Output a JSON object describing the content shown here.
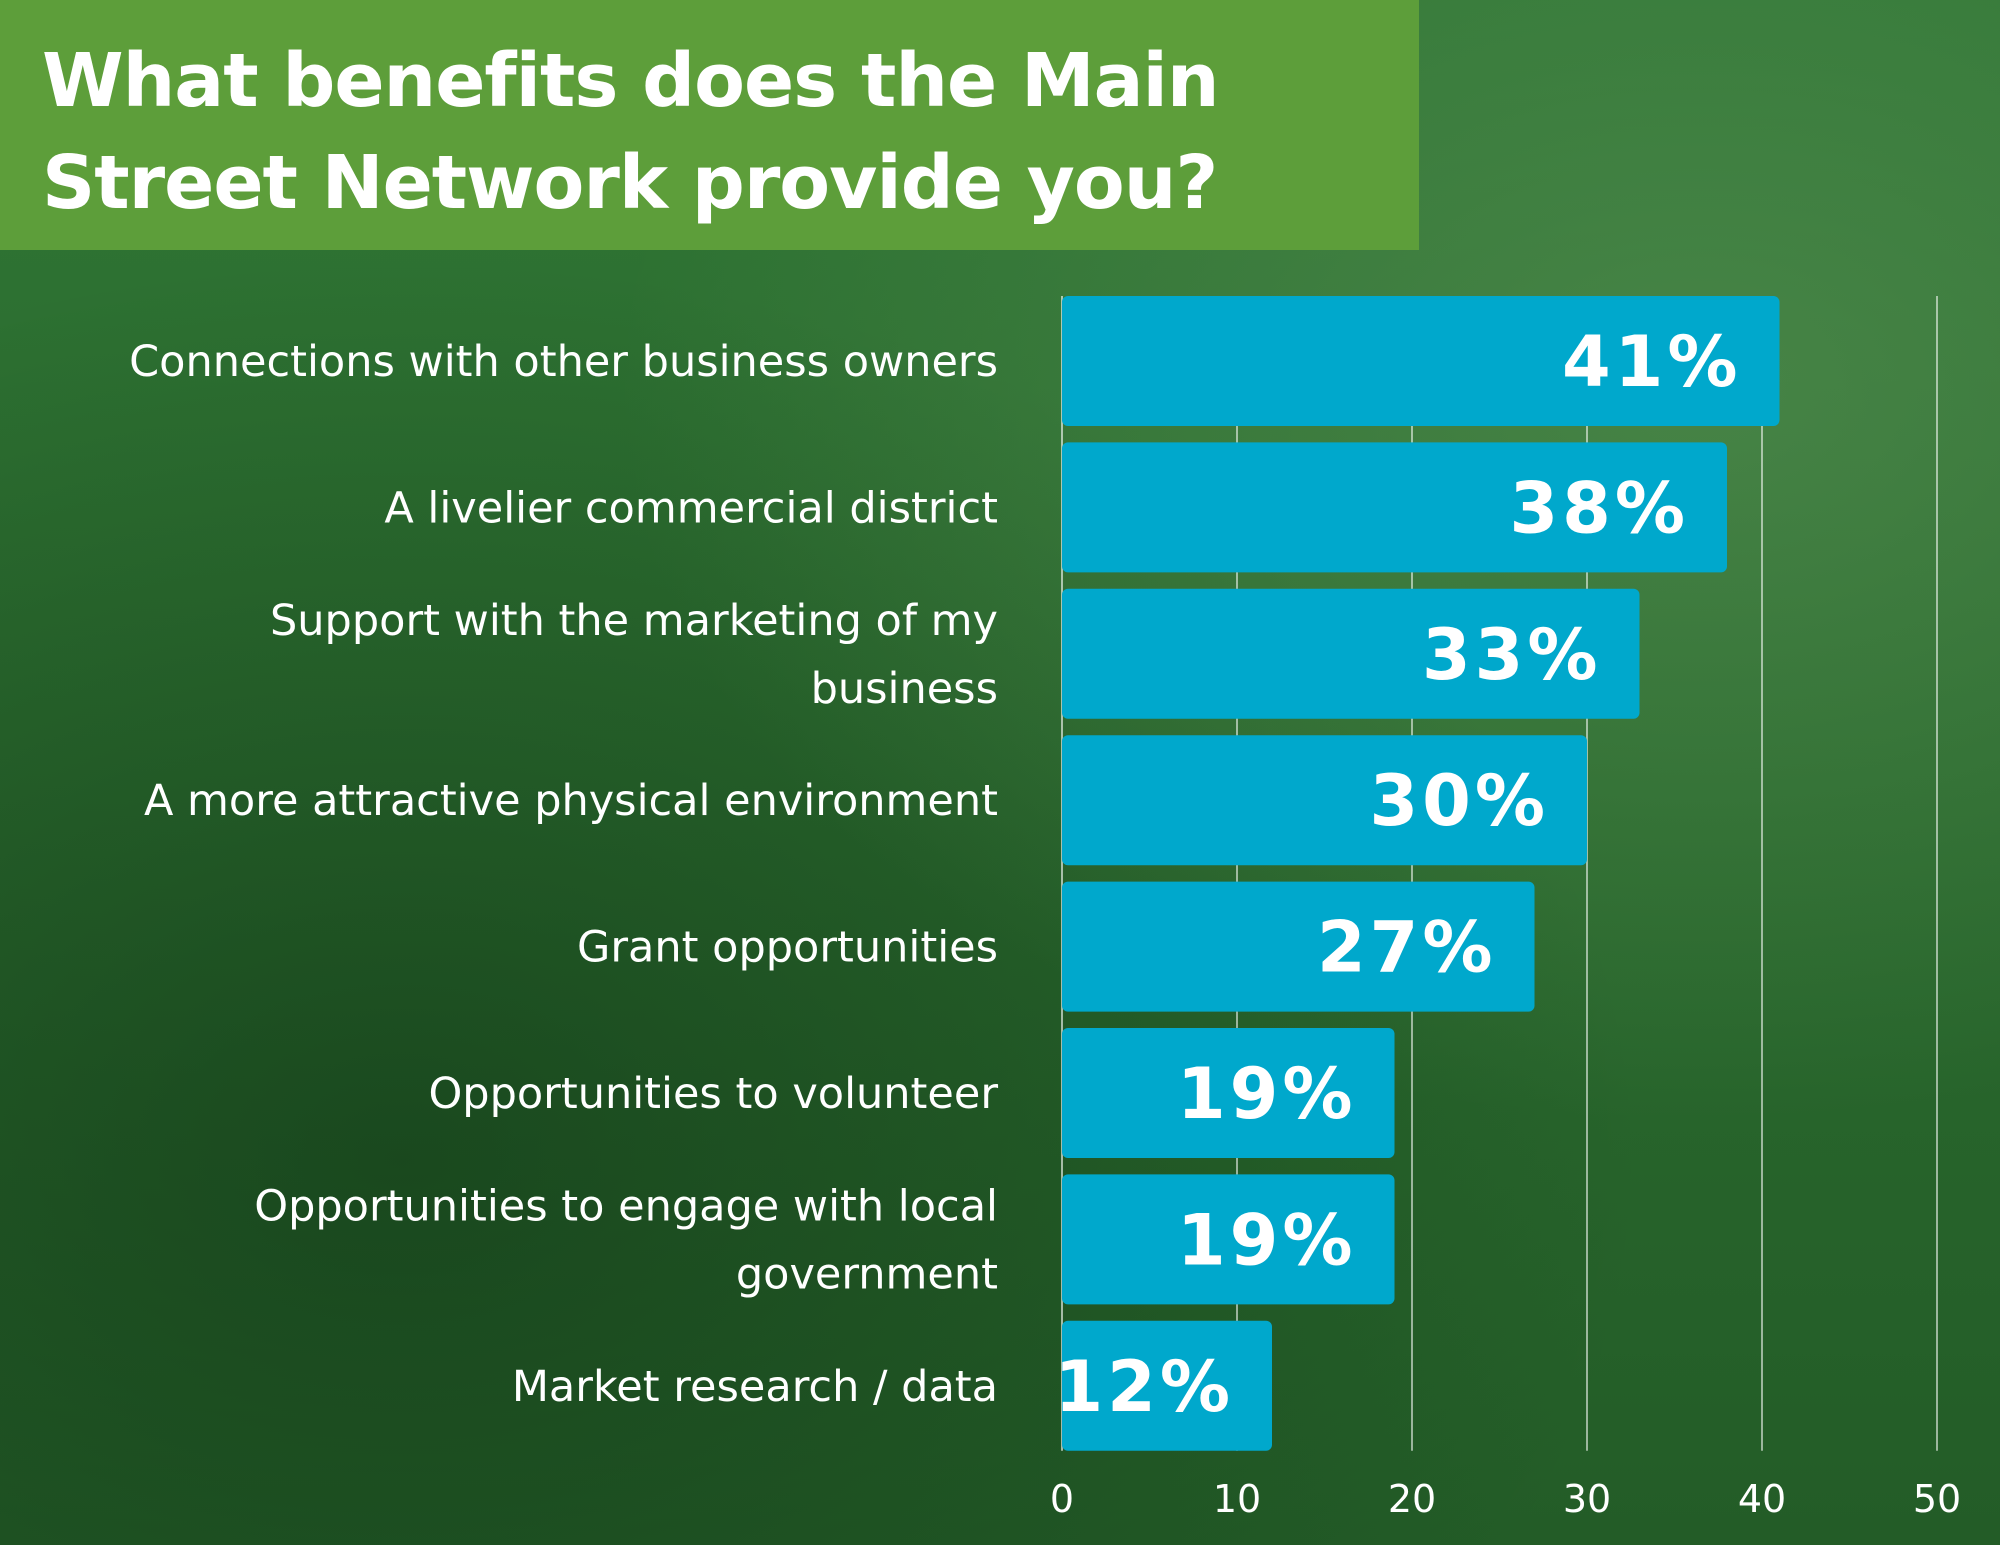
{
  "chart_data": {
    "type": "bar",
    "orientation": "horizontal",
    "title": "What benefits does the Main Street Network provide you?",
    "categories": [
      [
        "Connections with other business owners"
      ],
      [
        "A livelier commercial district"
      ],
      [
        "Support with the marketing of my",
        "business"
      ],
      [
        "A more attractive physical environment"
      ],
      [
        "Grant opportunities"
      ],
      [
        "Opportunities to volunteer"
      ],
      [
        "Opportunities to engage with local",
        "government"
      ],
      [
        "Market research / data"
      ]
    ],
    "values": [
      41,
      38,
      33,
      30,
      27,
      19,
      19,
      12
    ],
    "value_labels": [
      "41%",
      "38%",
      "33%",
      "30%",
      "27%",
      "19%",
      "19%",
      "12%"
    ],
    "xlim": [
      0,
      50
    ],
    "xticks": [
      0,
      10,
      20,
      30,
      40,
      50
    ],
    "grid": true,
    "bar_color": "#00a8cc",
    "xlabel": "",
    "ylabel": ""
  },
  "colors": {
    "title_background": "#5d9e3a",
    "background": "#2c6e2f",
    "text": "#ffffff"
  }
}
